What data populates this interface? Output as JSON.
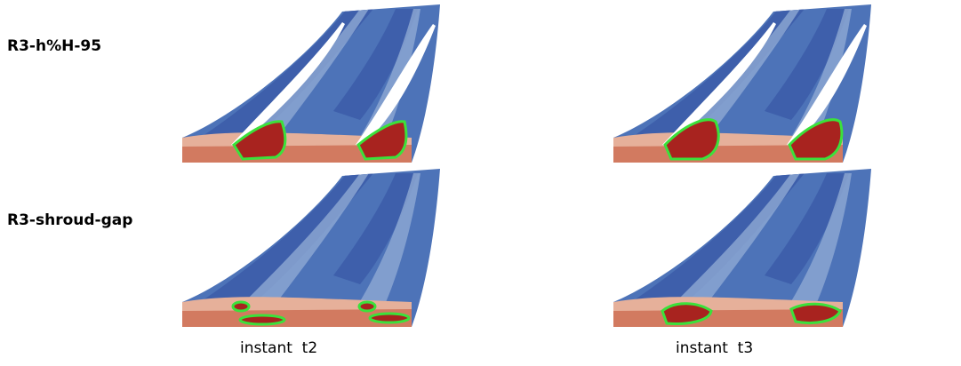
{
  "rows": [
    {
      "label": "R3-h%H-95"
    },
    {
      "label": "R3-shroud-gap"
    }
  ],
  "columns": [
    {
      "label": "instant  t2"
    },
    {
      "label": "instant  t3"
    }
  ]
}
